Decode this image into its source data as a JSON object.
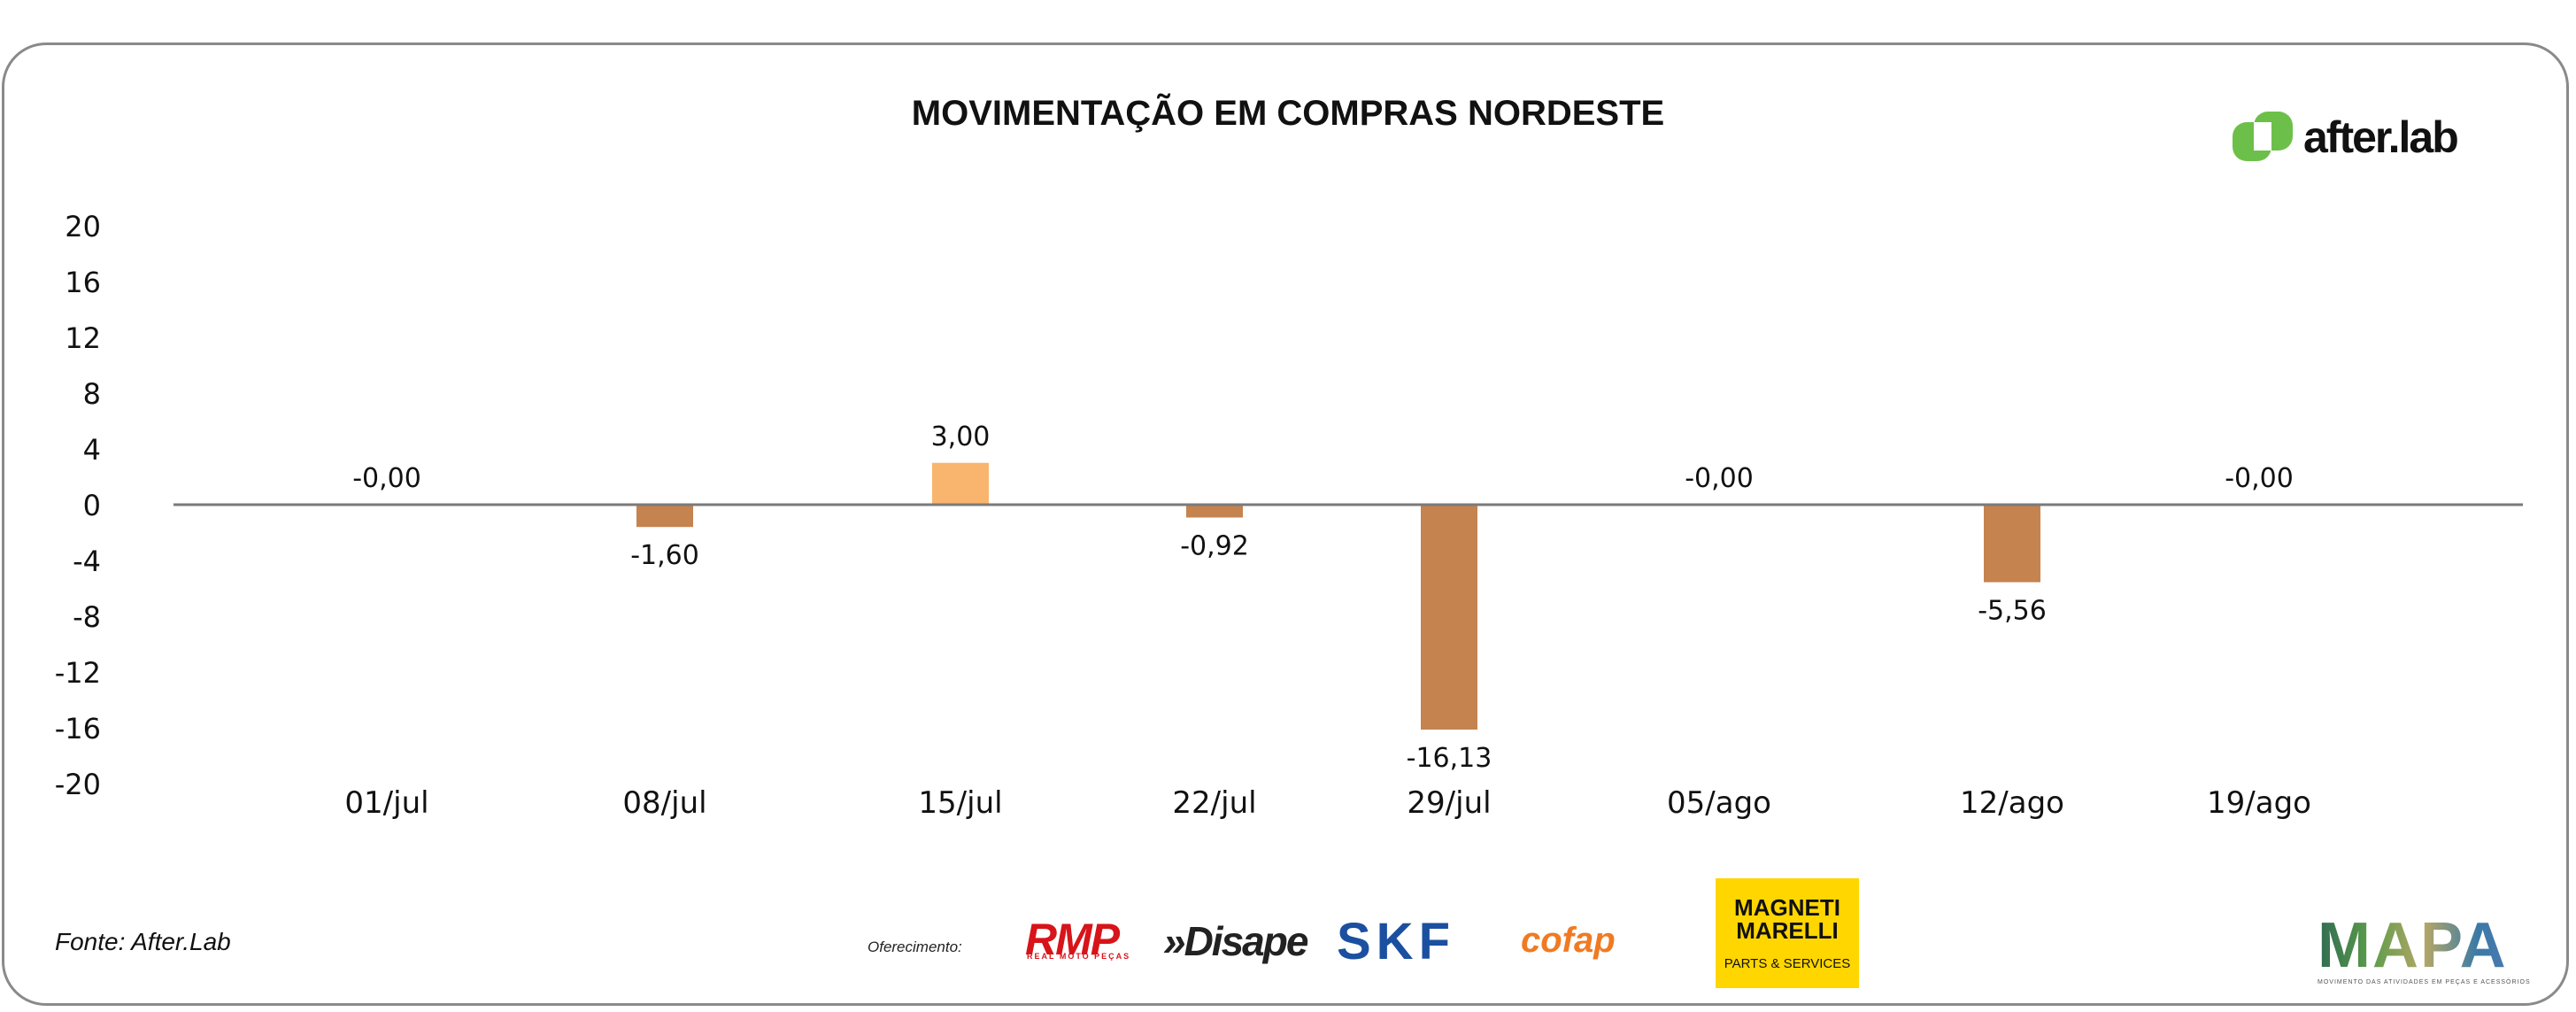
{
  "title": "MOVIMENTAÇÃO EM COMPRAS NORDESTE",
  "logo": {
    "text": "after.lab",
    "icon": "after-lab-logo-icon",
    "color": "#6cc04a"
  },
  "source": "Fonte: After.Lab",
  "sponsors": {
    "label": "Oferecimento:",
    "rmp": "RMP",
    "rmp_sub": "REAL MOTO PEÇAS",
    "disape": "»Disape",
    "skf": "SKF",
    "cofap": "cofap",
    "magneti": "MAGNETI MARELLI",
    "magneti_sub": "PARTS & SERVICES"
  },
  "mapa": {
    "text": "MAPA",
    "sub": "MOVIMENTO DAS ATIVIDADES EM PEÇAS E ACESSÓRIOS"
  },
  "colors": {
    "bar": "#c5834f",
    "bar_positive": "#f9b56d",
    "zero_line": "#7a7a7a",
    "text": "#111111"
  },
  "chart_data": {
    "type": "bar",
    "categories": [
      "01/jul",
      "08/jul",
      "15/jul",
      "22/jul",
      "29/jul",
      "05/ago",
      "12/ago",
      "19/ago"
    ],
    "values": [
      0,
      -1.6,
      3.0,
      -0.92,
      -16.13,
      0,
      -5.56,
      0
    ],
    "data_labels": [
      "-0,00",
      "-1,60",
      "3,00",
      "-0,92",
      "-16,13",
      "-0,00",
      "-5,56",
      "-0,00"
    ],
    "ylim": [
      -20,
      20
    ],
    "yticks": [
      20,
      16,
      12,
      8,
      4,
      0,
      -4,
      -8,
      -12,
      -16,
      -20
    ],
    "xlabel": "",
    "ylabel": "",
    "grid": false,
    "legend": "none"
  }
}
